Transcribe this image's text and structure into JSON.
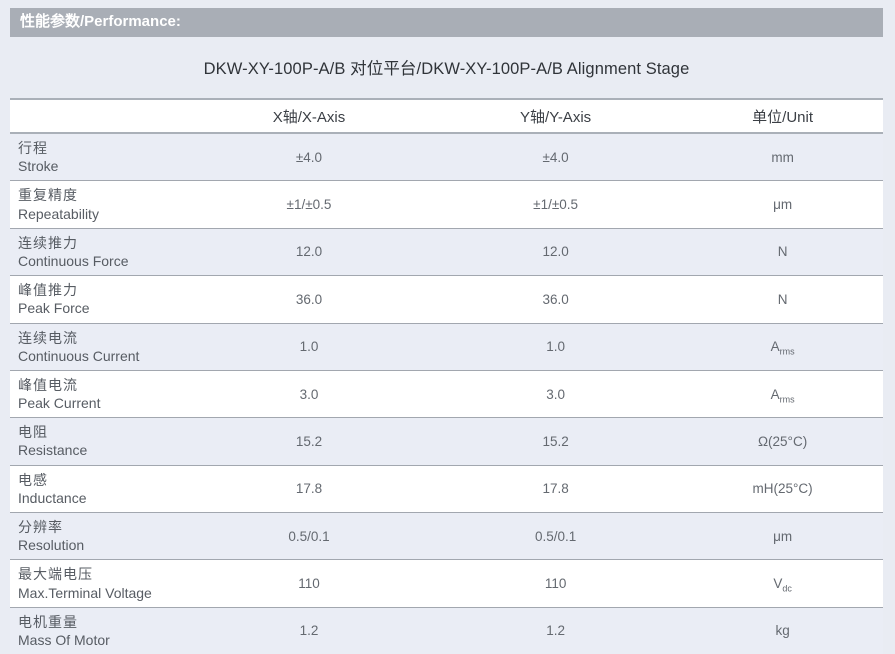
{
  "section_header": "性能参数/Performance:",
  "table_title": "DKW-XY-100P-A/B 对位平台/DKW-XY-100P-A/B Alignment Stage",
  "table": {
    "columns": [
      "",
      "X轴/X-Axis",
      "Y轴/Y-Axis",
      "单位/Unit"
    ],
    "rows": [
      {
        "name_zh": "行程",
        "name_en": "Stroke",
        "x": "±4.0",
        "y": "±4.0",
        "unit": "mm"
      },
      {
        "name_zh": "重复精度",
        "name_en": "Repeatability",
        "x": "±1/±0.5",
        "y": "±1/±0.5",
        "unit": "μm"
      },
      {
        "name_zh": "连续推力",
        "name_en": "Continuous Force",
        "x": "12.0",
        "y": "12.0",
        "unit": "N"
      },
      {
        "name_zh": "峰值推力",
        "name_en": "Peak Force",
        "x": "36.0",
        "y": "36.0",
        "unit": "N"
      },
      {
        "name_zh": "连续电流",
        "name_en": "Continuous Current",
        "x": "1.0",
        "y": "1.0",
        "unit": "A",
        "unit_sub": "rms"
      },
      {
        "name_zh": "峰值电流",
        "name_en": "Peak Current",
        "x": "3.0",
        "y": "3.0",
        "unit": "A",
        "unit_sub": "rms"
      },
      {
        "name_zh": "电阻",
        "name_en": "Resistance",
        "x": "15.2",
        "y": "15.2",
        "unit": "Ω(25°C)"
      },
      {
        "name_zh": "电感",
        "name_en": "Inductance",
        "x": "17.8",
        "y": "17.8",
        "unit": "mH(25°C)"
      },
      {
        "name_zh": "分辨率",
        "name_en": "Resolution",
        "x": "0.5/0.1",
        "y": "0.5/0.1",
        "unit": "μm"
      },
      {
        "name_zh": "最大端电压",
        "name_en": "Max.Terminal Voltage",
        "x": "110",
        "y": "110",
        "unit": "V",
        "unit_sub": "dc"
      },
      {
        "name_zh": "电机重量",
        "name_en": "Mass Of Motor",
        "x": "1.2",
        "y": "1.2",
        "unit": "kg"
      }
    ]
  },
  "colors": {
    "page-bg": "#e9ecf3",
    "bar-bg": "#a9aeb6",
    "bar-text": "#ffffff",
    "row-tint": "#eaedf5",
    "row-white": "#ffffff",
    "rule-color": "#a2a7af",
    "title-text": "#303439",
    "label-text": "#575c63",
    "value-text": "#646970"
  }
}
